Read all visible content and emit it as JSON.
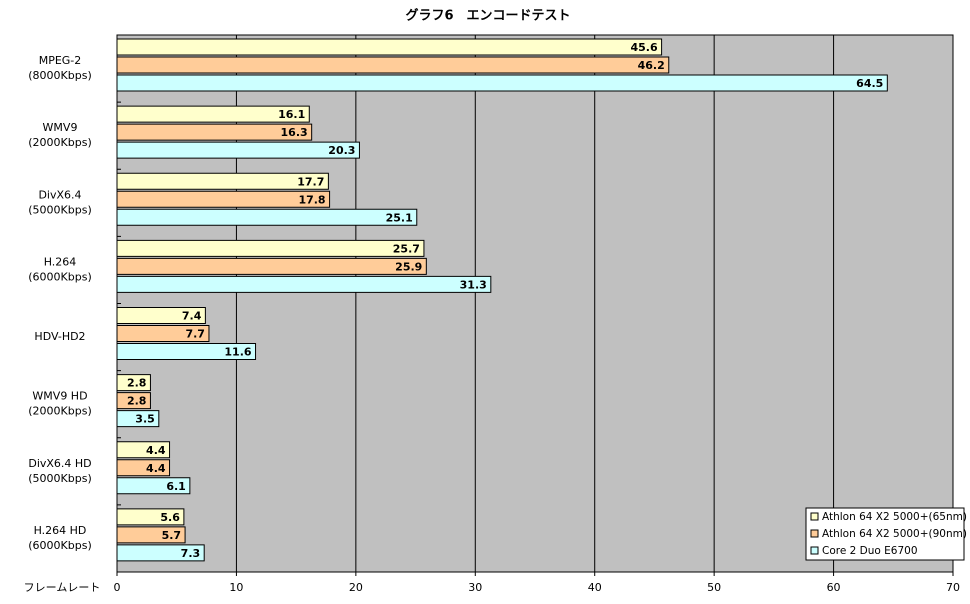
{
  "chart_data": {
    "type": "bar",
    "orientation": "horizontal",
    "title": "グラフ6　エンコードテスト",
    "xlabel": "フレームレート",
    "categories": [
      [
        "MPEG-2",
        "(8000Kbps)"
      ],
      [
        "WMV9",
        "(2000Kbps)"
      ],
      [
        "DivX6.4",
        "(5000Kbps)"
      ],
      [
        "H.264",
        "(6000Kbps)"
      ],
      [
        "HDV-HD2"
      ],
      [
        "WMV9 HD",
        "(2000Kbps)"
      ],
      [
        "DivX6.4 HD",
        "(5000Kbps)"
      ],
      [
        "H.264 HD",
        "(6000Kbps)"
      ]
    ],
    "series": [
      {
        "name": "Athlon 64 X2 5000+(65nm)",
        "color": "#ffffcc",
        "values": [
          45.6,
          16.1,
          17.7,
          25.7,
          7.4,
          2.8,
          4.4,
          5.6
        ]
      },
      {
        "name": "Athlon 64 X2 5000+(90nm)",
        "color": "#ffcc99",
        "values": [
          46.2,
          16.3,
          17.8,
          25.9,
          7.7,
          2.8,
          4.4,
          5.7
        ]
      },
      {
        "name": "Core 2 Duo E6700",
        "color": "#ccffff",
        "values": [
          64.5,
          20.3,
          25.1,
          31.3,
          11.6,
          3.5,
          6.1,
          7.3
        ]
      }
    ],
    "xlim": [
      0,
      70
    ],
    "xticks": [
      0,
      10,
      20,
      30,
      40,
      50,
      60,
      70
    ],
    "grid": true,
    "legend": "lower right",
    "plot_background": "#c0c0c0"
  }
}
